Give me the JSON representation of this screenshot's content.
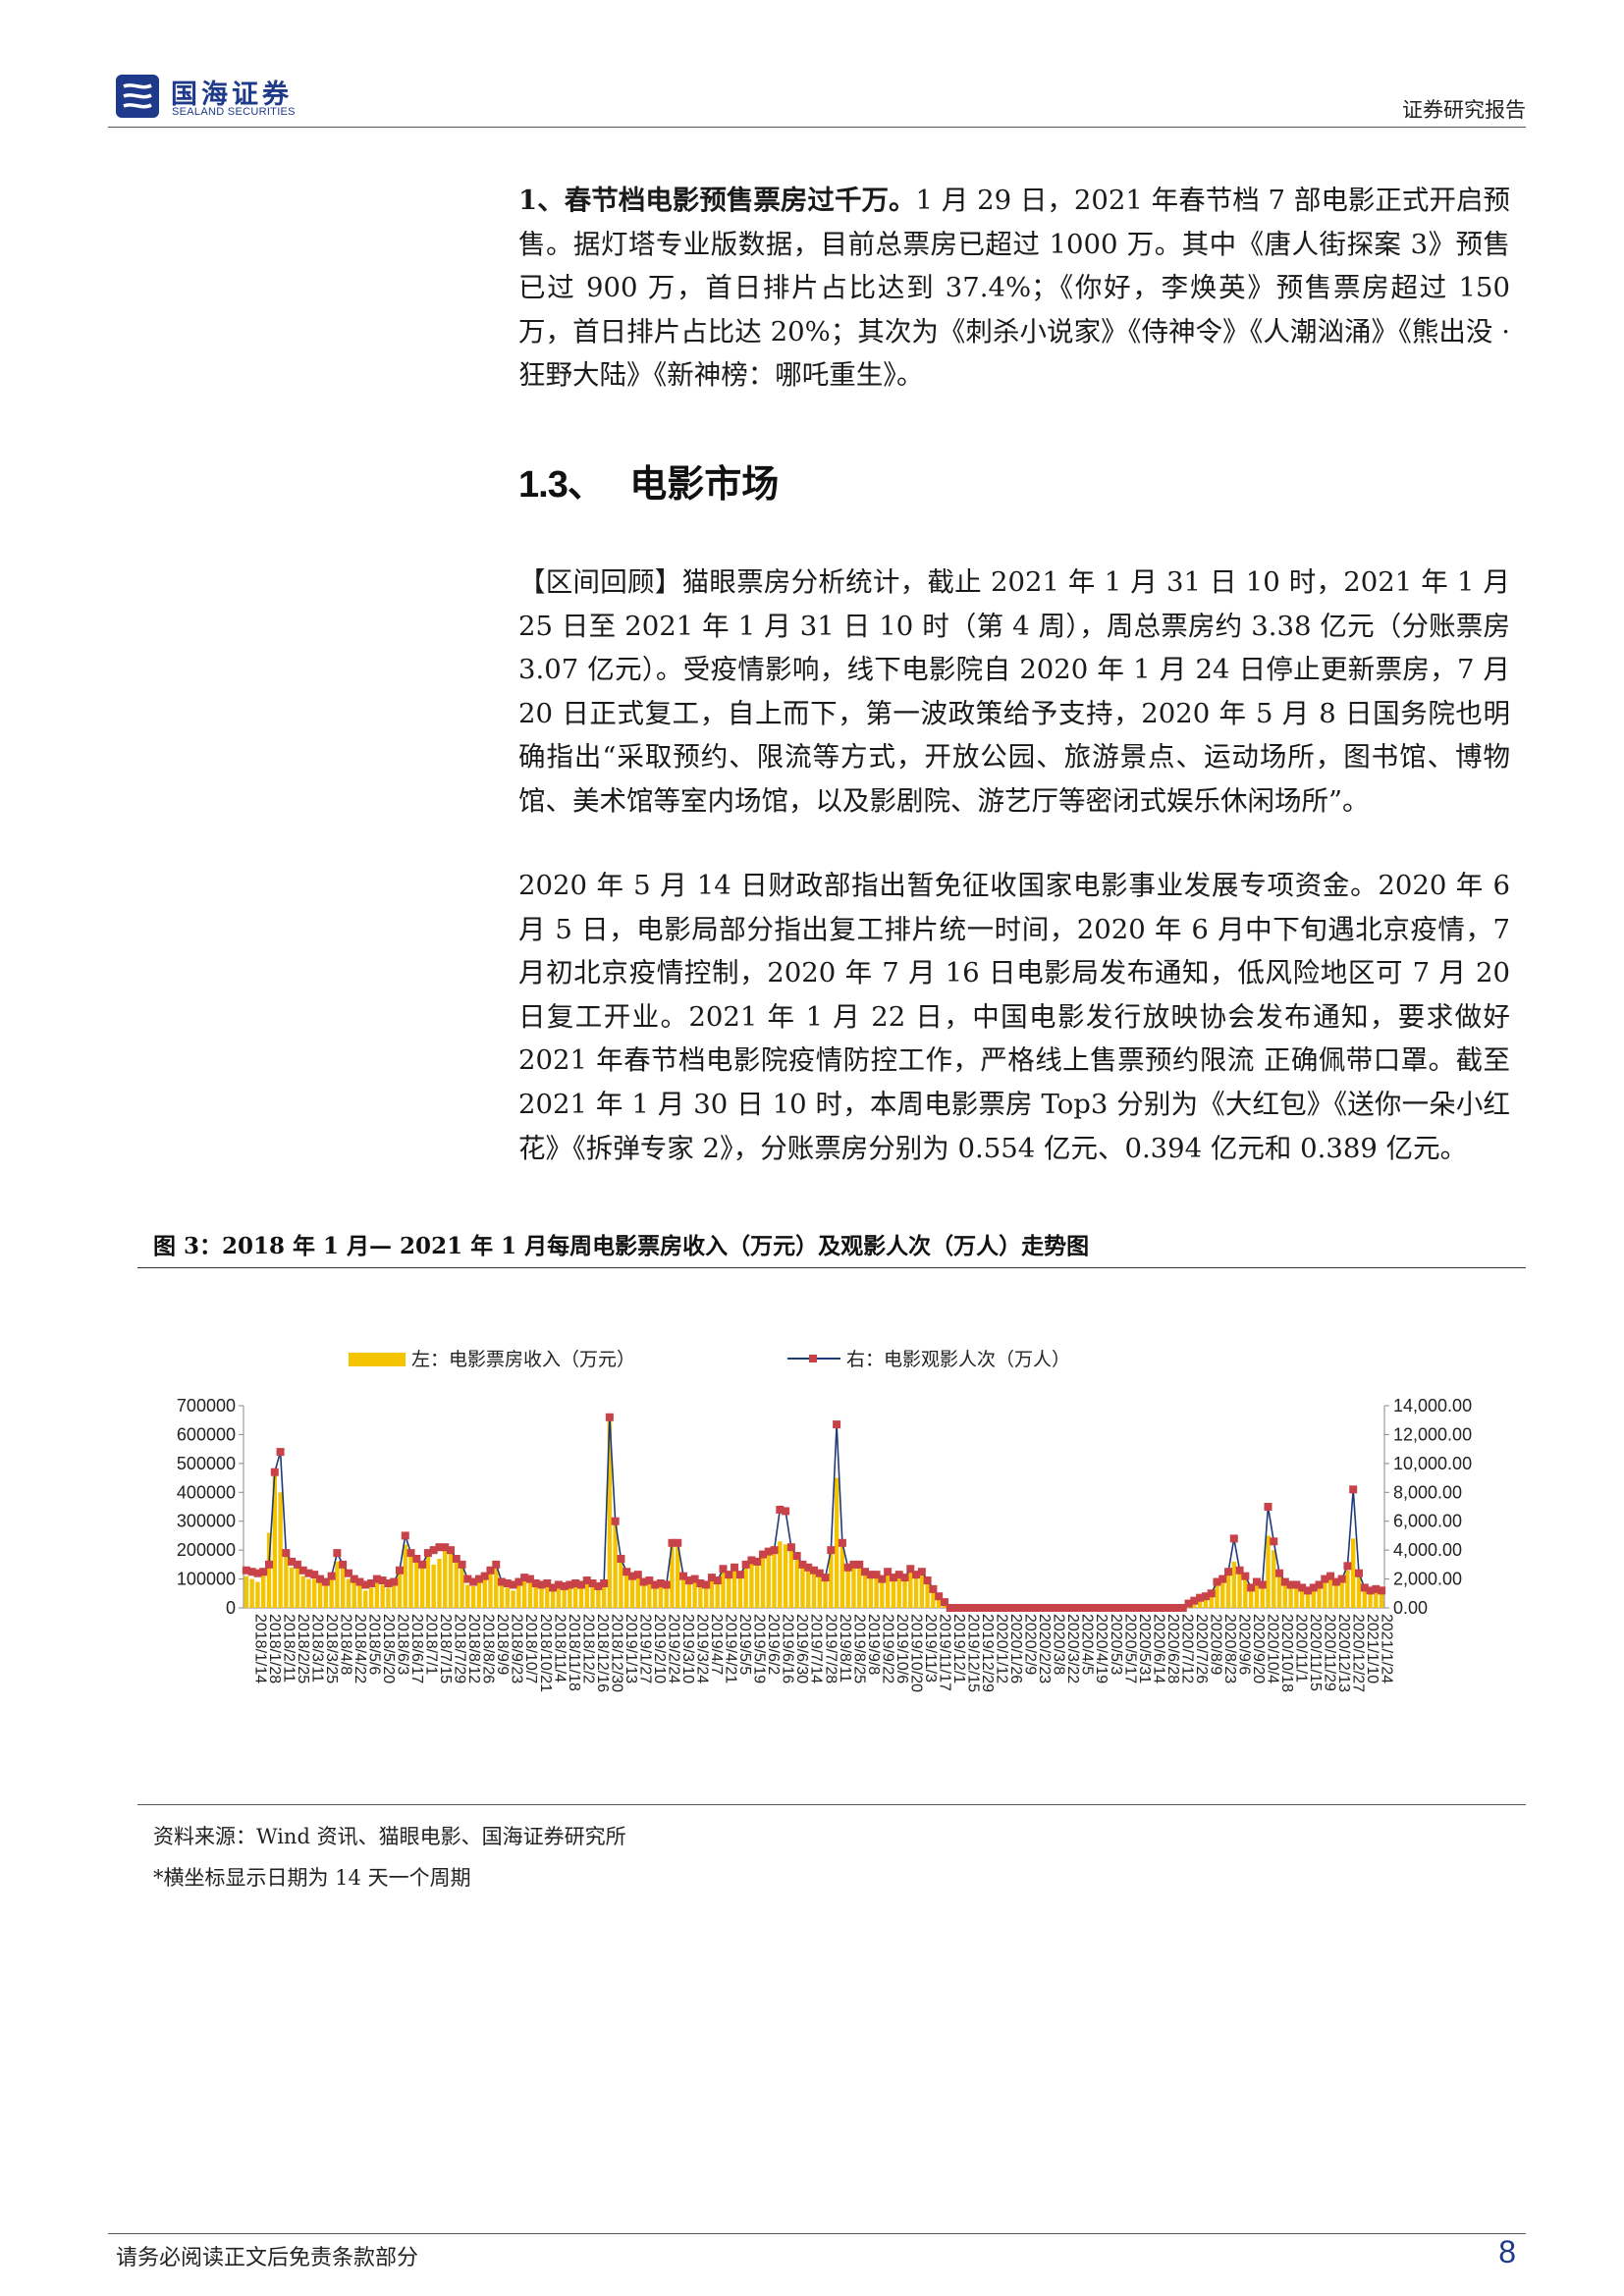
{
  "header": {
    "logo_cn": "国海证券",
    "logo_en": "SEALAND SECURITIES",
    "doc_type": "证券研究报告"
  },
  "para1": {
    "lead": "1、春节档电影预售票房过千万。",
    "body": "1 月 29 日，2021 年春节档 7 部电影正式开启预售。据灯塔专业版数据，目前总票房已超过 1000 万。其中《唐人街探案 3》预售已过 900 万，首日排片占比达到 37.4%；《你好，李焕英》预售票房超过 150 万，首日排片占比达 20%；其次为《刺杀小说家》《侍神令》《人潮汹涌》《熊出没 · 狂野大陆》《新神榜：哪吒重生》。"
  },
  "section": {
    "number": "1.3、",
    "title": "电影市场"
  },
  "para2": "【区间回顾】猫眼票房分析统计，截止 2021 年 1 月 31 日 10 时，2021 年 1 月 25 日至 2021 年 1 月 31 日 10 时（第 4 周），周总票房约 3.38 亿元（分账票房 3.07 亿元）。受疫情影响，线下电影院自 2020 年 1 月 24 日停止更新票房，7 月 20 日正式复工，自上而下，第一波政策给予支持，2020 年 5 月 8 日国务院也明确指出“采取预约、限流等方式，开放公园、旅游景点、运动场所，图书馆、博物馆、美术馆等室内场馆，以及影剧院、游艺厅等密闭式娱乐休闲场所”。",
  "para3": "2020 年 5 月 14 日财政部指出暂免征收国家电影事业发展专项资金。2020 年 6 月 5 日，电影局部分指出复工排片统一时间，2020 年 6 月中下旬遇北京疫情，7 月初北京疫情控制，2020 年 7 月 16 日电影局发布通知，低风险地区可 7 月 20 日复工开业。2021 年 1 月 22 日，中国电影发行放映协会发布通知，要求做好 2021 年春节档电影院疫情防控工作，严格线上售票预约限流 正确佩带口罩。截至 2021 年 1 月 30 日 10 时，本周电影票房 Top3 分别为《大红包》《送你一朵小红花》《拆弹专家 2》，分账票房分别为 0.554 亿元、0.394 亿元和 0.389 亿元。",
  "figure": {
    "title": "图 3：2018 年 1 月— 2021 年 1 月每周电影票房收入（万元）及观影人次（万人）走势图",
    "source": "资料来源：Wind 资讯、猫眼电影、国海证券研究所",
    "note": "*横坐标显示日期为 14 天一个周期"
  },
  "footer": {
    "disclaimer": "请务必阅读正文后免责条款部分",
    "page": "8"
  },
  "chart_data": {
    "type": "bar+line",
    "legend": "top-center",
    "grid": false,
    "colors": {
      "bars": "#f5c400",
      "line": "#1f3a7a",
      "markers": "#c8424a"
    },
    "series": [
      {
        "name": "左：电影票房收入（万元）",
        "axis": "left",
        "type": "bar"
      },
      {
        "name": "右：电影观影人次（万人）",
        "axis": "right",
        "type": "line"
      }
    ],
    "y_left": {
      "ylim": [
        0,
        700000
      ],
      "ticks": [
        "0",
        "100000",
        "200000",
        "300000",
        "400000",
        "500000",
        "600000",
        "700000"
      ]
    },
    "y_right": {
      "ylim": [
        0,
        14000
      ],
      "ticks": [
        "0.00",
        "2,000.00",
        "4,000.00",
        "6,000.00",
        "8,000.00",
        "10,000.00",
        "12,000.00",
        "14,000.00"
      ]
    },
    "x_ticks": [
      "2018/1/14",
      "2018/1/28",
      "2018/2/11",
      "2018/2/25",
      "2018/3/11",
      "2018/3/25",
      "2018/4/8",
      "2018/4/22",
      "2018/5/6",
      "2018/5/20",
      "2018/6/3",
      "2018/6/17",
      "2018/7/1",
      "2018/7/15",
      "2018/7/29",
      "2018/8/12",
      "2018/8/26",
      "2018/9/9",
      "2018/9/23",
      "2018/10/7",
      "2018/10/21",
      "2018/11/4",
      "2018/11/18",
      "2018/12/2",
      "2018/12/16",
      "2018/12/30",
      "2019/1/13",
      "2019/1/27",
      "2019/2/10",
      "2019/2/24",
      "2019/3/10",
      "2019/3/24",
      "2019/4/7",
      "2019/4/21",
      "2019/5/5",
      "2019/5/19",
      "2019/6/2",
      "2019/6/16",
      "2019/6/30",
      "2019/7/14",
      "2019/7/28",
      "2019/8/11",
      "2019/8/25",
      "2019/9/8",
      "2019/9/22",
      "2019/10/6",
      "2019/10/20",
      "2019/11/3",
      "2019/11/17",
      "2019/12/1",
      "2019/12/15",
      "2019/12/29",
      "2020/1/12",
      "2020/1/26",
      "2020/2/9",
      "2020/2/23",
      "2020/3/8",
      "2020/3/22",
      "2020/4/5",
      "2020/4/19",
      "2020/5/3",
      "2020/5/17",
      "2020/5/31",
      "2020/6/14",
      "2020/6/28",
      "2020/7/12",
      "2020/7/26",
      "2020/8/9",
      "2020/8/23",
      "2020/9/6",
      "2020/9/20",
      "2020/10/4",
      "2020/10/18",
      "2020/11/1",
      "2020/11/15",
      "2020/11/29",
      "2020/12/13",
      "2020/12/27",
      "2021/1/10",
      "2021/1/24"
    ],
    "box_office_wan": [
      110000,
      100000,
      90000,
      120000,
      260000,
      480000,
      400000,
      180000,
      140000,
      160000,
      110000,
      100000,
      100000,
      95000,
      85000,
      110000,
      160000,
      140000,
      100000,
      90000,
      80000,
      60000,
      70000,
      90000,
      80000,
      70000,
      80000,
      120000,
      220000,
      180000,
      160000,
      140000,
      180000,
      150000,
      170000,
      200000,
      190000,
      160000,
      140000,
      80000,
      75000,
      90000,
      100000,
      130000,
      150000,
      80000,
      70000,
      60000,
      80000,
      100000,
      90000,
      75000,
      70000,
      80000,
      60000,
      70000,
      65000,
      70000,
      80000,
      75000,
      90000,
      80000,
      70000,
      85000,
      650000,
      300000,
      170000,
      120000,
      100000,
      110000,
      80000,
      90000,
      70000,
      80000,
      70000,
      220000,
      210000,
      100000,
      90000,
      95000,
      80000,
      70000,
      100000,
      90000,
      130000,
      110000,
      140000,
      110000,
      150000,
      170000,
      160000,
      190000,
      200000,
      210000,
      230000,
      220000,
      210000,
      180000,
      150000,
      140000,
      130000,
      120000,
      100000,
      200000,
      450000,
      220000,
      140000,
      150000,
      150000,
      120000,
      110000,
      110000,
      100000,
      120000,
      100000,
      110000,
      100000,
      130000,
      110000,
      120000,
      90000,
      60000,
      40000,
      20000,
      0,
      0,
      0,
      0,
      0,
      0,
      0,
      0,
      0,
      0,
      0,
      0,
      0,
      0,
      0,
      0,
      0,
      0,
      0,
      0,
      0,
      0,
      0,
      0,
      0,
      0,
      0,
      0,
      0,
      0,
      0,
      0,
      0,
      0,
      0,
      0,
      0,
      0,
      0,
      0,
      0,
      0,
      10000,
      20000,
      30000,
      30000,
      40000,
      80000,
      90000,
      120000,
      160000,
      120000,
      100000,
      60000,
      80000,
      70000,
      250000,
      200000,
      110000,
      80000,
      70000,
      70000,
      60000,
      50000,
      60000,
      70000,
      90000,
      100000,
      80000,
      90000,
      130000,
      240000,
      110000,
      60000,
      50000,
      55000,
      50000
    ],
    "admissions_wan": [
      2600,
      2500,
      2400,
      2500,
      3000,
      9400,
      10800,
      3800,
      3200,
      3000,
      2600,
      2400,
      2300,
      2000,
      1800,
      2200,
      3800,
      3000,
      2400,
      2000,
      1800,
      1600,
      1700,
      2000,
      1900,
      1700,
      1800,
      2600,
      5000,
      3800,
      3400,
      3000,
      3800,
      4000,
      4200,
      4200,
      4000,
      3400,
      3000,
      2000,
      1800,
      2000,
      2200,
      2600,
      3000,
      1800,
      1700,
      1600,
      1800,
      2100,
      2000,
      1700,
      1600,
      1700,
      1400,
      1600,
      1500,
      1600,
      1700,
      1600,
      1900,
      1700,
      1500,
      1700,
      13200,
      6000,
      3400,
      2500,
      2200,
      2300,
      1800,
      1900,
      1600,
      1700,
      1600,
      4500,
      4500,
      2200,
      1900,
      2000,
      1700,
      1600,
      2100,
      1900,
      2700,
      2300,
      2800,
      2300,
      3000,
      3300,
      3200,
      3700,
      3900,
      4000,
      6800,
      6700,
      4200,
      3600,
      3000,
      2800,
      2600,
      2400,
      2100,
      4000,
      12700,
      4500,
      2800,
      3000,
      3000,
      2500,
      2300,
      2300,
      2000,
      2500,
      2100,
      2300,
      2100,
      2700,
      2300,
      2500,
      1900,
      1300,
      800,
      400,
      0,
      0,
      0,
      0,
      0,
      0,
      0,
      0,
      0,
      0,
      0,
      0,
      0,
      0,
      0,
      0,
      0,
      0,
      0,
      0,
      0,
      0,
      0,
      0,
      0,
      0,
      0,
      0,
      0,
      0,
      0,
      0,
      0,
      0,
      0,
      0,
      0,
      0,
      0,
      0,
      0,
      0,
      300,
      500,
      700,
      800,
      1000,
      1800,
      2000,
      2500,
      4800,
      2600,
      2200,
      1400,
      1800,
      1600,
      7000,
      4600,
      2400,
      1800,
      1600,
      1600,
      1400,
      1200,
      1400,
      1600,
      2000,
      2200,
      1800,
      2000,
      2900,
      8200,
      2400,
      1400,
      1200,
      1300,
      1200
    ]
  }
}
